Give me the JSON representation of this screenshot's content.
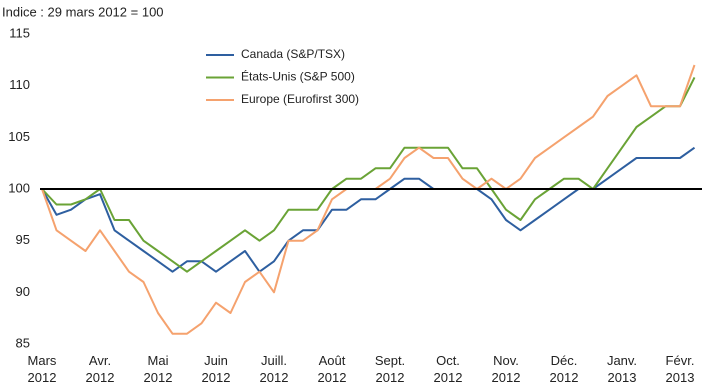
{
  "chart_data": {
    "type": "line",
    "subtitle": "Indice : 29 mars 2012 = 100",
    "categories": [
      "Mars 2012",
      null,
      null,
      null,
      "Avr. 2012",
      null,
      null,
      null,
      "Mai 2012",
      null,
      null,
      null,
      "Juin 2012",
      null,
      null,
      null,
      "Juill. 2012",
      null,
      null,
      null,
      "Août 2012",
      null,
      null,
      null,
      "Sept. 2012",
      null,
      null,
      null,
      "Oct. 2012",
      null,
      null,
      null,
      "Nov. 2012",
      null,
      null,
      null,
      "Déc. 2012",
      null,
      null,
      null,
      "Janv. 2013",
      null,
      null,
      null,
      "Févr. 2013",
      null
    ],
    "series": [
      {
        "name": "Canada (S&P/TSX)",
        "color": "#2e5fa0",
        "values": [
          100,
          97.5,
          98,
          99,
          99.5,
          96,
          95,
          94,
          93,
          92,
          93,
          93,
          92,
          93,
          94,
          92,
          93,
          95,
          96,
          96,
          98,
          98,
          99,
          99,
          100,
          101,
          101,
          100,
          100,
          100,
          100,
          99,
          97,
          96,
          97,
          98,
          99,
          100,
          100,
          101,
          102,
          103,
          103,
          103,
          103,
          104
        ]
      },
      {
        "name": "États-Unis (S&P 500)",
        "color": "#6aa336",
        "values": [
          100,
          98.5,
          98.5,
          99,
          100,
          97,
          97,
          95,
          94,
          93,
          92,
          93,
          94,
          95,
          96,
          95,
          96,
          98,
          98,
          98,
          100,
          101,
          101,
          102,
          102,
          104,
          104,
          104,
          104,
          102,
          102,
          100,
          98,
          97,
          99,
          100,
          101,
          101,
          100,
          102,
          104,
          106,
          107,
          108,
          108,
          110.8
        ]
      },
      {
        "name": "Europe (Eurofirst 300)",
        "color": "#f5a26e",
        "values": [
          100,
          96,
          95,
          94,
          96,
          94,
          92,
          91,
          88,
          86,
          86,
          87,
          89,
          88,
          91,
          92,
          90,
          95,
          95,
          96,
          99,
          100,
          100,
          100,
          101,
          103,
          104,
          103,
          103,
          101,
          100,
          101,
          100,
          101,
          103,
          104,
          105,
          106,
          107,
          109,
          110,
          111,
          108,
          108,
          108,
          112
        ]
      }
    ],
    "ylim": [
      85,
      115
    ],
    "yticks": [
      85,
      90,
      95,
      100,
      105,
      110,
      115
    ],
    "baseline": 100,
    "legend": "top"
  }
}
